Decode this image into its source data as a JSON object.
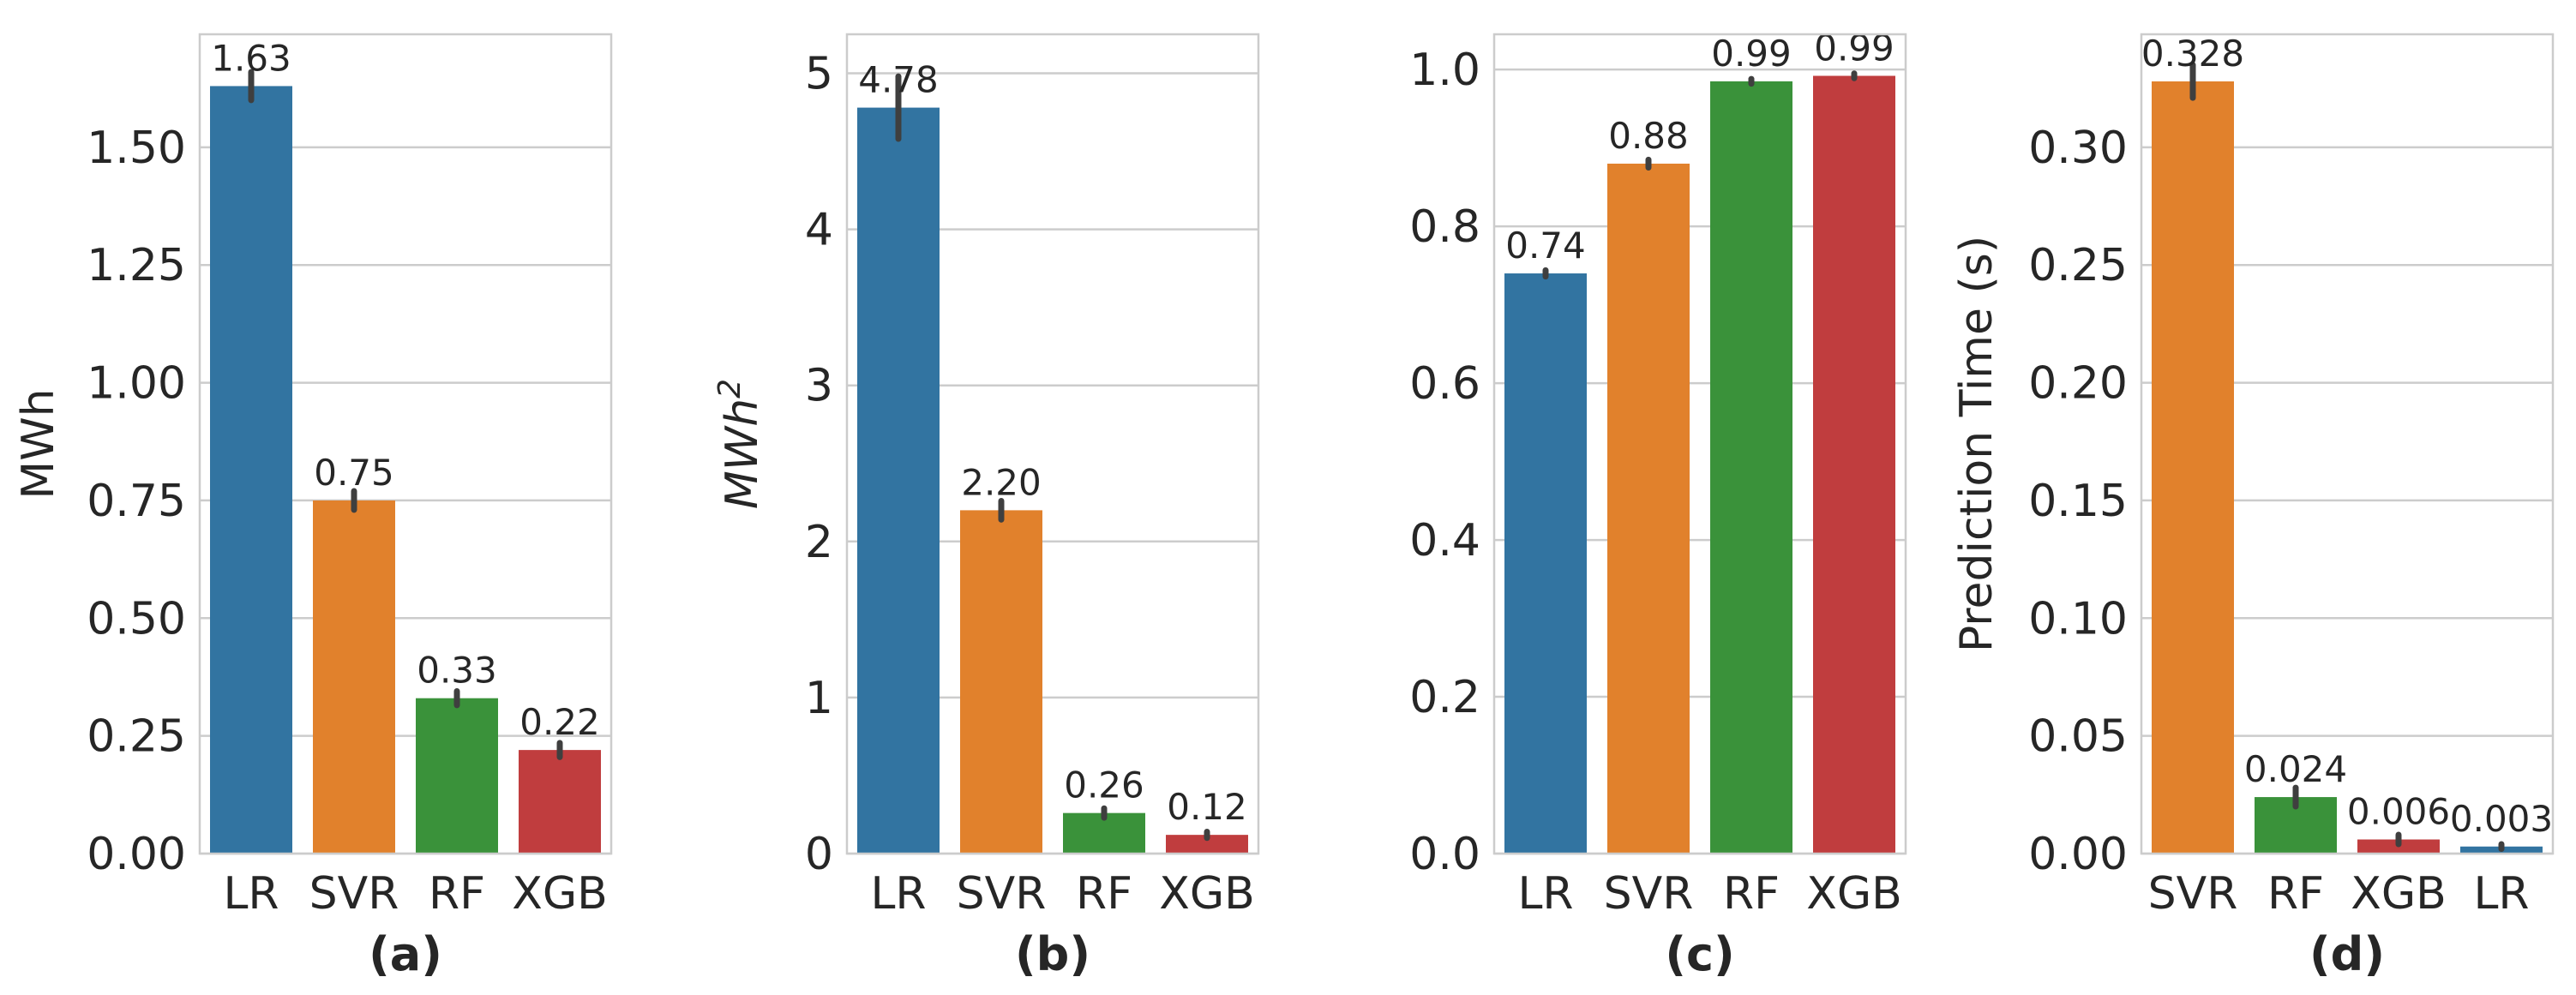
{
  "chart_data": [
    {
      "type": "bar",
      "panel": "(a)",
      "categories": [
        "LR",
        "SVR",
        "RF",
        "XGB"
      ],
      "values": [
        1.63,
        0.75,
        0.33,
        0.22
      ],
      "value_labels": [
        "1.63",
        "0.75",
        "0.33",
        "0.22"
      ],
      "errors": [
        0.03,
        0.02,
        0.015,
        0.015
      ],
      "colors": [
        "#3274a1",
        "#e1812c",
        "#3a923a",
        "#c03d3e"
      ],
      "ylabel": "MWh",
      "ylim": [
        0,
        1.74
      ],
      "yticks": [
        0.0,
        0.25,
        0.5,
        0.75,
        1.0,
        1.25,
        1.5
      ],
      "ytick_labels": [
        "0.00",
        "0.25",
        "0.50",
        "0.75",
        "1.00",
        "1.25",
        "1.50"
      ],
      "grid": true
    },
    {
      "type": "bar",
      "panel": "(b)",
      "categories": [
        "LR",
        "SVR",
        "RF",
        "XGB"
      ],
      "values": [
        4.78,
        2.2,
        0.26,
        0.12
      ],
      "value_labels": [
        "4.78",
        "2.20",
        "0.26",
        "0.12"
      ],
      "errors": [
        0.2,
        0.06,
        0.03,
        0.02
      ],
      "colors": [
        "#3274a1",
        "#e1812c",
        "#3a923a",
        "#c03d3e"
      ],
      "ylabel_base": "MWh",
      "ylabel_sup": "2",
      "ylim": [
        0,
        5.25
      ],
      "yticks": [
        0,
        1,
        2,
        3,
        4,
        5
      ],
      "ytick_labels": [
        "0",
        "1",
        "2",
        "3",
        "4",
        "5"
      ],
      "grid": true
    },
    {
      "type": "bar",
      "panel": "(c)",
      "categories": [
        "LR",
        "SVR",
        "RF",
        "XGB"
      ],
      "values": [
        0.74,
        0.88,
        0.985,
        0.992
      ],
      "value_labels": [
        "0.74",
        "0.88",
        "0.99",
        "0.99"
      ],
      "errors": [
        0.004,
        0.005,
        0.003,
        0.003
      ],
      "colors": [
        "#3274a1",
        "#e1812c",
        "#3a923a",
        "#c03d3e"
      ],
      "ylabel": "",
      "ylim": [
        0,
        1.045
      ],
      "yticks": [
        0.0,
        0.2,
        0.4,
        0.6,
        0.8,
        1.0
      ],
      "ytick_labels": [
        "0.0",
        "0.2",
        "0.4",
        "0.6",
        "0.8",
        "1.0"
      ],
      "grid": true
    },
    {
      "type": "bar",
      "panel": "(d)",
      "categories": [
        "SVR",
        "RF",
        "XGB",
        "LR"
      ],
      "values": [
        0.328,
        0.024,
        0.006,
        0.003
      ],
      "value_labels": [
        "0.328",
        "0.024",
        "0.006",
        "0.003"
      ],
      "errors": [
        0.007,
        0.004,
        0.002,
        0.001
      ],
      "colors": [
        "#e1812c",
        "#3a923a",
        "#c03d3e",
        "#3274a1"
      ],
      "ylabel": "Prediction Time (s)",
      "ylim": [
        0,
        0.348
      ],
      "yticks": [
        0.0,
        0.05,
        0.1,
        0.15,
        0.2,
        0.25,
        0.3
      ],
      "ytick_labels": [
        "0.00",
        "0.05",
        "0.10",
        "0.15",
        "0.20",
        "0.25",
        "0.30"
      ],
      "grid": true
    }
  ]
}
